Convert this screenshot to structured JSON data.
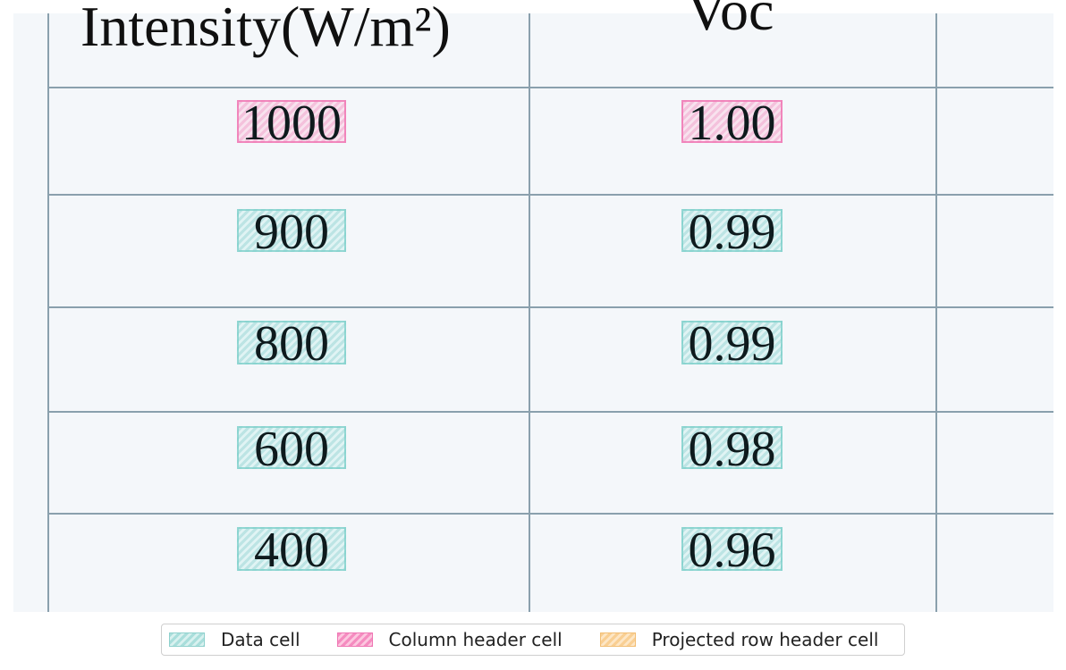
{
  "table": {
    "header_left": "Intensity(W/m²)",
    "header_right": "Voc",
    "rows": [
      {
        "intensity": "1000",
        "voc": "1.00"
      },
      {
        "intensity": "900",
        "voc": "0.99"
      },
      {
        "intensity": "800",
        "voc": "0.99"
      },
      {
        "intensity": "600",
        "voc": "0.98"
      },
      {
        "intensity": "400",
        "voc": "0.96"
      }
    ]
  },
  "legend": {
    "data_cell": "Data cell",
    "column_header_cell": "Column header cell",
    "projected_row_header_cell": "Projected row header cell"
  },
  "colors": {
    "data_cell": "#8fd6d2",
    "column_header_cell": "#f596c3",
    "projected_row_header_cell": "#f9cf93"
  }
}
